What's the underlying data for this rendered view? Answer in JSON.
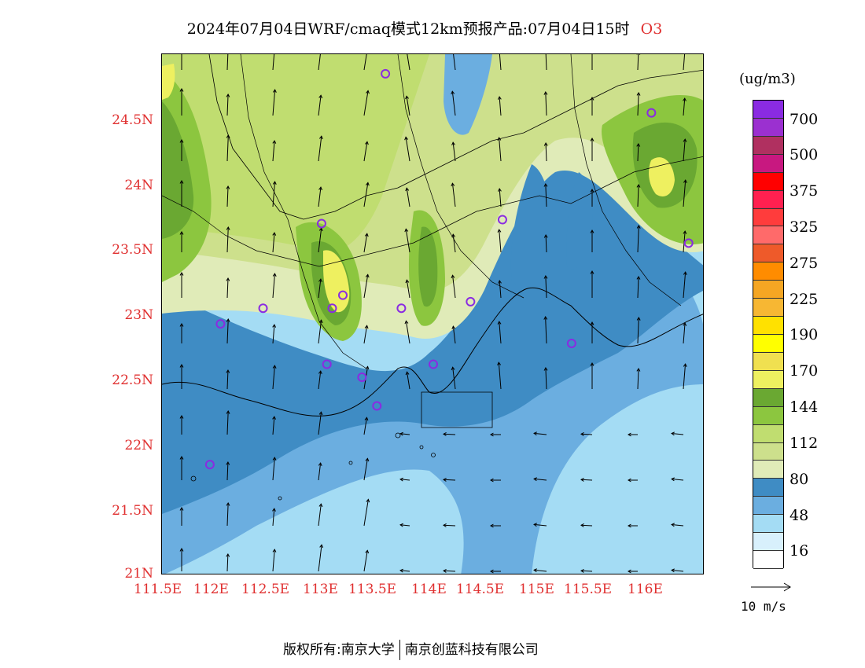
{
  "title": {
    "text": "2024年07月04日WRF/cmaq模式12km预报产品:07月04日15时",
    "species": "O3"
  },
  "axes": {
    "y_ticks": [
      "24.5N",
      "24N",
      "23.5N",
      "23N",
      "22.5N",
      "22N",
      "21.5N",
      "21N"
    ],
    "y_values": [
      24.5,
      24,
      23.5,
      23,
      22.5,
      22,
      21.5,
      21
    ],
    "x_ticks": [
      "111.5E",
      "112E",
      "112.5E",
      "113E",
      "113.5E",
      "114E",
      "114.5E",
      "115E",
      "115.5E",
      "116E"
    ],
    "x_values": [
      111.5,
      112,
      112.5,
      113,
      113.5,
      114,
      114.5,
      115,
      115.5,
      116
    ],
    "lon_range": [
      111.5,
      116.6
    ],
    "lat_range": [
      21,
      25
    ]
  },
  "colorbar": {
    "unit": "(ug/m3)",
    "labels": [
      "700",
      "500",
      "375",
      "325",
      "275",
      "225",
      "190",
      "170",
      "144",
      "112",
      "80",
      "48",
      "16"
    ],
    "colors": [
      "#8a2be2",
      "#9b30d0",
      "#b03060",
      "#c81880",
      "#ff0000",
      "#ff2050",
      "#ff3c3c",
      "#ff6a6a",
      "#ee5a2a",
      "#ff8c00",
      "#f5a623",
      "#f7b733",
      "#ffe100",
      "#ffff00",
      "#f0e050",
      "#eef060",
      "#6aa832",
      "#8cc63f",
      "#c0dd70",
      "#cde08c",
      "#e0ebb8",
      "#3f8cc4",
      "#6baee0",
      "#a4dcf4",
      "#d8f0fc",
      "#ffffff"
    ]
  },
  "reference_vector": {
    "label": "10 m/s"
  },
  "footer": {
    "left": "版权所有:南京大学",
    "right": "南京创蓝科技有限公司"
  },
  "colors": {
    "tick_label": "#e03030",
    "station_marker": "#8a2be2",
    "sea": "#a4dcf4"
  },
  "stations": [
    {
      "lon": 113.6,
      "lat": 24.85
    },
    {
      "lon": 116.1,
      "lat": 24.55
    },
    {
      "lon": 113.0,
      "lat": 23.7
    },
    {
      "lon": 114.7,
      "lat": 23.73
    },
    {
      "lon": 116.45,
      "lat": 23.55
    },
    {
      "lon": 113.2,
      "lat": 23.15
    },
    {
      "lon": 113.1,
      "lat": 23.05
    },
    {
      "lon": 112.45,
      "lat": 23.05
    },
    {
      "lon": 113.75,
      "lat": 23.05
    },
    {
      "lon": 114.4,
      "lat": 23.1
    },
    {
      "lon": 112.05,
      "lat": 22.93
    },
    {
      "lon": 115.35,
      "lat": 22.78
    },
    {
      "lon": 113.05,
      "lat": 22.62
    },
    {
      "lon": 113.38,
      "lat": 22.52
    },
    {
      "lon": 114.05,
      "lat": 22.62
    },
    {
      "lon": 113.52,
      "lat": 22.3
    },
    {
      "lon": 111.95,
      "lat": 21.85
    }
  ]
}
